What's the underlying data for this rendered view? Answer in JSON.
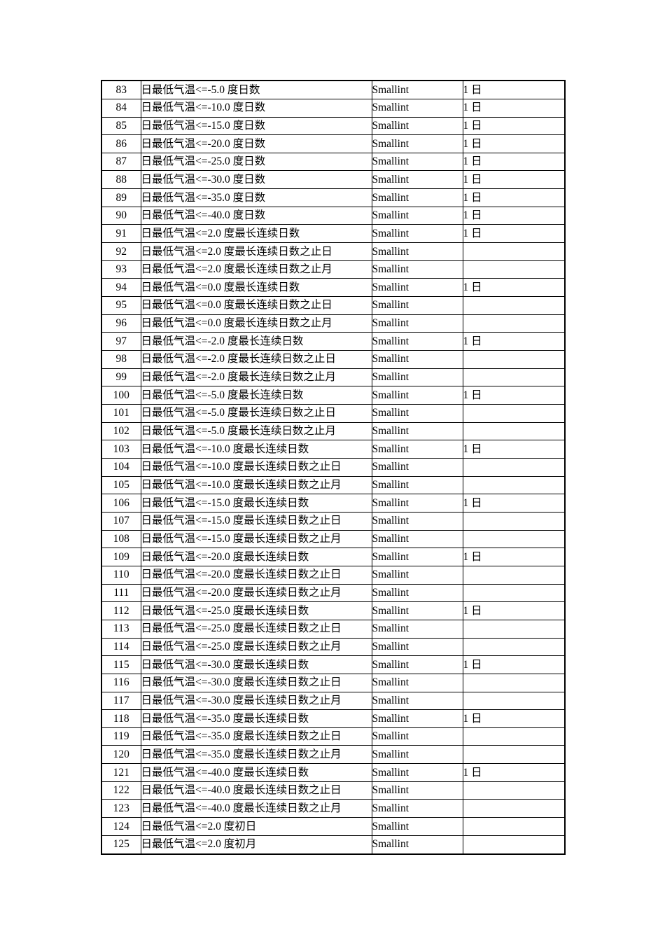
{
  "table": {
    "rows": [
      {
        "no": "83",
        "name": "日最低气温<=-5.0 度日数",
        "type": "Smallint",
        "unit": "1 日"
      },
      {
        "no": "84",
        "name": "日最低气温<=-10.0 度日数",
        "type": "Smallint",
        "unit": "1 日"
      },
      {
        "no": "85",
        "name": "日最低气温<=-15.0 度日数",
        "type": "Smallint",
        "unit": "1 日"
      },
      {
        "no": "86",
        "name": "日最低气温<=-20.0 度日数",
        "type": "Smallint",
        "unit": "1 日"
      },
      {
        "no": "87",
        "name": "日最低气温<=-25.0 度日数",
        "type": "Smallint",
        "unit": "1 日"
      },
      {
        "no": "88",
        "name": "日最低气温<=-30.0 度日数",
        "type": "Smallint",
        "unit": "1 日"
      },
      {
        "no": "89",
        "name": "日最低气温<=-35.0 度日数",
        "type": "Smallint",
        "unit": "1 日"
      },
      {
        "no": "90",
        "name": "日最低气温<=-40.0 度日数",
        "type": "Smallint",
        "unit": "1 日"
      },
      {
        "no": "91",
        "name": "日最低气温<=2.0 度最长连续日数",
        "type": "Smallint",
        "unit": "1 日"
      },
      {
        "no": "92",
        "name": "日最低气温<=2.0 度最长连续日数之止日",
        "type": "Smallint",
        "unit": ""
      },
      {
        "no": "93",
        "name": "日最低气温<=2.0 度最长连续日数之止月",
        "type": "Smallint",
        "unit": ""
      },
      {
        "no": "94",
        "name": "日最低气温<=0.0 度最长连续日数",
        "type": "Smallint",
        "unit": "1 日"
      },
      {
        "no": "95",
        "name": "日最低气温<=0.0 度最长连续日数之止日",
        "type": "Smallint",
        "unit": ""
      },
      {
        "no": "96",
        "name": "日最低气温<=0.0 度最长连续日数之止月",
        "type": "Smallint",
        "unit": ""
      },
      {
        "no": "97",
        "name": "日最低气温<=-2.0 度最长连续日数",
        "type": "Smallint",
        "unit": "1 日"
      },
      {
        "no": "98",
        "name": "日最低气温<=-2.0 度最长连续日数之止日",
        "type": "Smallint",
        "unit": ""
      },
      {
        "no": "99",
        "name": "日最低气温<=-2.0 度最长连续日数之止月",
        "type": "Smallint",
        "unit": ""
      },
      {
        "no": "100",
        "name": "日最低气温<=-5.0 度最长连续日数",
        "type": "Smallint",
        "unit": "1 日"
      },
      {
        "no": "101",
        "name": "日最低气温<=-5.0 度最长连续日数之止日",
        "type": "Smallint",
        "unit": ""
      },
      {
        "no": "102",
        "name": "日最低气温<=-5.0 度最长连续日数之止月",
        "type": "Smallint",
        "unit": ""
      },
      {
        "no": "103",
        "name": "日最低气温<=-10.0 度最长连续日数",
        "type": "Smallint",
        "unit": "1 日"
      },
      {
        "no": "104",
        "name": "日最低气温<=-10.0 度最长连续日数之止日",
        "type": "Smallint",
        "unit": ""
      },
      {
        "no": "105",
        "name": "日最低气温<=-10.0 度最长连续日数之止月",
        "type": "Smallint",
        "unit": ""
      },
      {
        "no": "106",
        "name": "日最低气温<=-15.0 度最长连续日数",
        "type": "Smallint",
        "unit": "1 日"
      },
      {
        "no": "107",
        "name": "日最低气温<=-15.0 度最长连续日数之止日",
        "type": "Smallint",
        "unit": ""
      },
      {
        "no": "108",
        "name": "日最低气温<=-15.0 度最长连续日数之止月",
        "type": "Smallint",
        "unit": ""
      },
      {
        "no": "109",
        "name": "日最低气温<=-20.0 度最长连续日数",
        "type": "Smallint",
        "unit": "1 日"
      },
      {
        "no": "110",
        "name": "日最低气温<=-20.0 度最长连续日数之止日",
        "type": "Smallint",
        "unit": ""
      },
      {
        "no": "111",
        "name": "日最低气温<=-20.0 度最长连续日数之止月",
        "type": "Smallint",
        "unit": ""
      },
      {
        "no": "112",
        "name": "日最低气温<=-25.0 度最长连续日数",
        "type": "Smallint",
        "unit": "1 日"
      },
      {
        "no": "113",
        "name": "日最低气温<=-25.0 度最长连续日数之止日",
        "type": "Smallint",
        "unit": ""
      },
      {
        "no": "114",
        "name": "日最低气温<=-25.0 度最长连续日数之止月",
        "type": "Smallint",
        "unit": ""
      },
      {
        "no": "115",
        "name": "日最低气温<=-30.0 度最长连续日数",
        "type": "Smallint",
        "unit": "1 日"
      },
      {
        "no": "116",
        "name": "日最低气温<=-30.0 度最长连续日数之止日",
        "type": "Smallint",
        "unit": ""
      },
      {
        "no": "117",
        "name": "日最低气温<=-30.0 度最长连续日数之止月",
        "type": "Smallint",
        "unit": ""
      },
      {
        "no": "118",
        "name": "日最低气温<=-35.0 度最长连续日数",
        "type": "Smallint",
        "unit": "1 日"
      },
      {
        "no": "119",
        "name": "日最低气温<=-35.0 度最长连续日数之止日",
        "type": "Smallint",
        "unit": ""
      },
      {
        "no": "120",
        "name": "日最低气温<=-35.0 度最长连续日数之止月",
        "type": "Smallint",
        "unit": ""
      },
      {
        "no": "121",
        "name": "日最低气温<=-40.0 度最长连续日数",
        "type": "Smallint",
        "unit": "1 日"
      },
      {
        "no": "122",
        "name": "日最低气温<=-40.0 度最长连续日数之止日",
        "type": "Smallint",
        "unit": ""
      },
      {
        "no": "123",
        "name": "日最低气温<=-40.0 度最长连续日数之止月",
        "type": "Smallint",
        "unit": ""
      },
      {
        "no": "124",
        "name": "日最低气温<=2.0 度初日",
        "type": "Smallint",
        "unit": ""
      },
      {
        "no": "125",
        "name": "日最低气温<=2.0 度初月",
        "type": "Smallint",
        "unit": ""
      }
    ]
  }
}
